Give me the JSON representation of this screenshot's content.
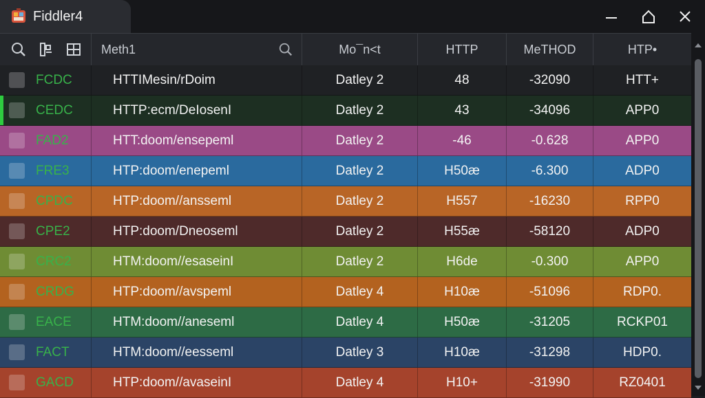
{
  "app": {
    "title": "Fiddler4"
  },
  "header": {
    "columns": [
      "Meth1",
      "Mo¯n<t",
      "HTTP",
      "MeTHOD",
      "HTP•"
    ]
  },
  "rows": [
    {
      "id": "FCDC",
      "url": "HTTIMesin/rDoim",
      "mon": "Datley 2",
      "http": "48",
      "meth": "-32090",
      "last": "HTT+",
      "color": "#1f2124",
      "accent": false
    },
    {
      "id": "CEDC",
      "url": "HTTP:ecm/DeIosenI",
      "mon": "Datley 2",
      "http": "43",
      "meth": "-34096",
      "last": "APP0",
      "color": "#1d2f22",
      "accent": true
    },
    {
      "id": "FAD2",
      "url": "HTT:doom/ensepeml",
      "mon": "Datley 2",
      "http": "-46",
      "meth": "-0.628",
      "last": "APP0",
      "color": "#9a4a86",
      "accent": false
    },
    {
      "id": "FRE3",
      "url": "HTP:doom/enepeml",
      "mon": "Datley 2",
      "http": "H50æ",
      "meth": "-6.300",
      "last": "ADP0",
      "color": "#2a6a9e",
      "accent": false
    },
    {
      "id": "CPDC",
      "url": "HTP:doom//ansseml",
      "mon": "Datley 2",
      "http": "H557",
      "meth": "-16230",
      "last": "RPP0",
      "color": "#b86526",
      "accent": false
    },
    {
      "id": "CPE2",
      "url": "HTP:doom/Dneoseml",
      "mon": "Datley 2",
      "http": "H55æ",
      "meth": "-58120",
      "last": "ADP0",
      "color": "#4e2a2a",
      "accent": false
    },
    {
      "id": "CRC2",
      "url": "HTM:doom//esaseinI",
      "mon": "Datley 2",
      "http": "H6de",
      "meth": "-0.300",
      "last": "APP0",
      "color": "#6f8c34",
      "accent": false
    },
    {
      "id": "CRDG",
      "url": "HTP:doom//avspeml",
      "mon": "Datley 4",
      "http": "H10æ",
      "meth": "-51096",
      "last": "RDP0.",
      "color": "#b3621f",
      "accent": false
    },
    {
      "id": "EACE",
      "url": "HTM:doom//aneseml",
      "mon": "Datley 4",
      "http": "H50æ",
      "meth": "-31205",
      "last": "RCKP01",
      "color": "#2d6b45",
      "accent": false
    },
    {
      "id": "FACT",
      "url": "HTM:doom//eesseml",
      "mon": "Datley 3",
      "http": "H10æ",
      "meth": "-31298",
      "last": "HDP0.",
      "color": "#2b4466",
      "accent": false
    },
    {
      "id": "GACD",
      "url": "HTP:doom//avaseinI",
      "mon": "Datley 4",
      "http": "H10+",
      "meth": "-31990",
      "last": "RZ0401",
      "color": "#a5432c",
      "accent": false
    }
  ],
  "icons": {
    "app": "fiddler-app-icon",
    "minimize": "minimize-icon",
    "maximize": "home-maximize-icon",
    "close": "close-icon",
    "search": "search-icon",
    "filter": "filter-split-icon",
    "inspect": "inspect-grid-icon",
    "column_search": "search-icon"
  }
}
